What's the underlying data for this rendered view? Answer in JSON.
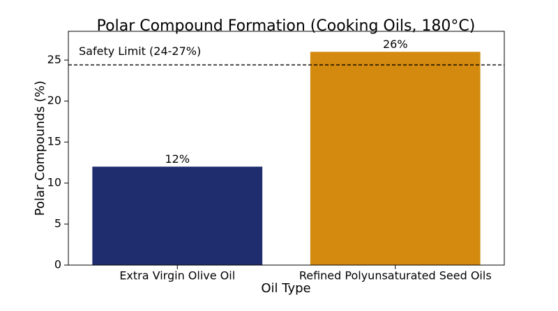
{
  "chart_data": {
    "type": "bar",
    "title": "Polar Compound Formation (Cooking Oils, 180°C)",
    "x_label": "Oil Type",
    "y_label": "Polar Compounds (%)",
    "categories": [
      "Extra Virgin Olive Oil",
      "Refined Polyunsaturated Seed Oils"
    ],
    "values": [
      12,
      26
    ],
    "value_labels": [
      "12%",
      "26%"
    ],
    "colors": [
      "#1f2d6e",
      "#d4890f"
    ],
    "ylim": [
      0,
      28.5
    ],
    "yticks": [
      0,
      5,
      10,
      15,
      20,
      25
    ],
    "grid": false,
    "reference_line": {
      "value": 24.4,
      "label": "Safety Limit (24-27%)",
      "style": "dashed"
    }
  }
}
